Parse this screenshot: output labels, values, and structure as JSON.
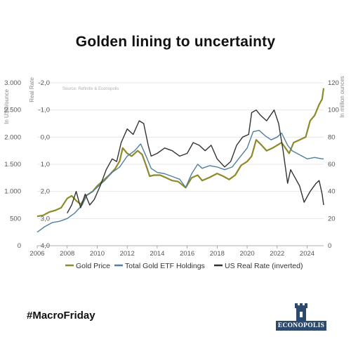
{
  "title": "Golden lining to uncertainty",
  "hashtag": "#MacroFriday",
  "logo_text": "ECONOPOLIS",
  "chart_data": {
    "type": "line",
    "source_note": "Source: Refinitiv & Econopolis",
    "x_axis": {
      "ticks": [
        "2006",
        "2008",
        "2010",
        "2012",
        "2014",
        "2016",
        "2018",
        "2020",
        "2022",
        "2024"
      ],
      "range": [
        2006,
        2025.1
      ]
    },
    "y_left_outer": {
      "label": "In USD/ounce",
      "ticks": [
        "0",
        "500",
        "1.000",
        "1.500",
        "2.000",
        "2.500",
        "3.000"
      ],
      "range": [
        0,
        3000
      ]
    },
    "y_left_inner": {
      "label": "Real Rate",
      "ticks": [
        "4,0",
        "3,0",
        "2,0",
        "1,0",
        "0,0",
        "-1,0",
        "-2,0"
      ],
      "range": [
        4,
        -2
      ],
      "inverted": true
    },
    "y_right": {
      "label": "In million ounces",
      "ticks": [
        "0",
        "20",
        "40",
        "60",
        "80",
        "100",
        "120"
      ],
      "range": [
        0,
        120
      ]
    },
    "series": [
      {
        "name": "Gold Price",
        "color": "#8c8a2a",
        "axis": "left_outer",
        "x": [
          2006,
          2006.4,
          2006.8,
          2007.2,
          2007.6,
          2008,
          2008.3,
          2008.6,
          2008.9,
          2009.3,
          2009.7,
          2010,
          2010.4,
          2010.8,
          2011.2,
          2011.5,
          2011.7,
          2012,
          2012.3,
          2012.7,
          2013,
          2013.3,
          2013.5,
          2013.8,
          2014.2,
          2014.6,
          2015,
          2015.4,
          2015.9,
          2016.3,
          2016.7,
          2017,
          2017.5,
          2018,
          2018.4,
          2018.8,
          2019.2,
          2019.6,
          2020,
          2020.3,
          2020.6,
          2020.9,
          2021.3,
          2021.7,
          2022,
          2022.3,
          2022.8,
          2023.1,
          2023.5,
          2023.9,
          2024.2,
          2024.5,
          2024.8,
          2025,
          2025.1
        ],
        "y": [
          540,
          560,
          620,
          650,
          700,
          870,
          920,
          830,
          760,
          930,
          1000,
          1100,
          1200,
          1300,
          1420,
          1560,
          1800,
          1700,
          1650,
          1750,
          1680,
          1450,
          1280,
          1300,
          1300,
          1250,
          1200,
          1180,
          1070,
          1250,
          1300,
          1200,
          1260,
          1330,
          1280,
          1220,
          1300,
          1480,
          1550,
          1650,
          1950,
          1870,
          1750,
          1800,
          1850,
          1900,
          1700,
          1900,
          1950,
          2000,
          2300,
          2400,
          2600,
          2700,
          2900
        ]
      },
      {
        "name": "Total Gold ETF Holdings",
        "color": "#4f7f9e",
        "axis": "right",
        "x": [
          2006,
          2006.5,
          2007,
          2007.5,
          2008,
          2008.5,
          2009,
          2009.3,
          2009.7,
          2010,
          2010.5,
          2011,
          2011.5,
          2012,
          2012.5,
          2012.9,
          2013.3,
          2013.6,
          2014,
          2014.5,
          2015,
          2015.5,
          2015.9,
          2016.3,
          2016.7,
          2017,
          2017.5,
          2018,
          2018.5,
          2019,
          2019.5,
          2020,
          2020.4,
          2020.8,
          2021.2,
          2021.6,
          2022,
          2022.3,
          2022.7,
          2023,
          2023.5,
          2024,
          2024.5,
          2025,
          2025.1
        ],
        "y": [
          10,
          14,
          17,
          18,
          20,
          24,
          30,
          37,
          40,
          43,
          48,
          54,
          58,
          66,
          70,
          75,
          65,
          57,
          54,
          53,
          51,
          49,
          43,
          53,
          60,
          57,
          59,
          58,
          56,
          58,
          65,
          72,
          84,
          85,
          81,
          78,
          80,
          83,
          74,
          70,
          67,
          64,
          65,
          64,
          64
        ]
      },
      {
        "name": "US Real Rate (inverted)",
        "color": "#333333",
        "axis": "left_inner",
        "x": [
          2008,
          2008.3,
          2008.6,
          2008.9,
          2009.2,
          2009.5,
          2009.8,
          2010.2,
          2010.6,
          2011,
          2011.3,
          2011.6,
          2012,
          2012.4,
          2012.8,
          2013.1,
          2013.4,
          2013.6,
          2014,
          2014.5,
          2015,
          2015.5,
          2016,
          2016.4,
          2016.8,
          2017.2,
          2017.6,
          2018,
          2018.5,
          2018.9,
          2019.3,
          2019.7,
          2020.1,
          2020.3,
          2020.6,
          2020.9,
          2021.3,
          2021.8,
          2022.1,
          2022.4,
          2022.7,
          2022.9,
          2023.2,
          2023.5,
          2023.8,
          2024.2,
          2024.6,
          2024.8,
          2025,
          2025.1
        ],
        "y": [
          2.8,
          2.5,
          2.0,
          2.6,
          2.1,
          2.5,
          2.3,
          1.8,
          1.2,
          0.8,
          0.9,
          0.2,
          -0.3,
          -0.1,
          -0.6,
          -0.5,
          0.3,
          0.7,
          0.6,
          0.4,
          0.5,
          0.7,
          0.6,
          0.2,
          0.3,
          0.5,
          0.3,
          0.8,
          1.1,
          0.9,
          0.3,
          0.0,
          -0.1,
          -0.9,
          -1.0,
          -0.8,
          -0.6,
          -1.0,
          -0.5,
          0.5,
          1.7,
          1.2,
          1.5,
          1.8,
          2.4,
          2.0,
          1.7,
          1.6,
          2.1,
          2.5
        ]
      }
    ],
    "legend": "bottom"
  }
}
